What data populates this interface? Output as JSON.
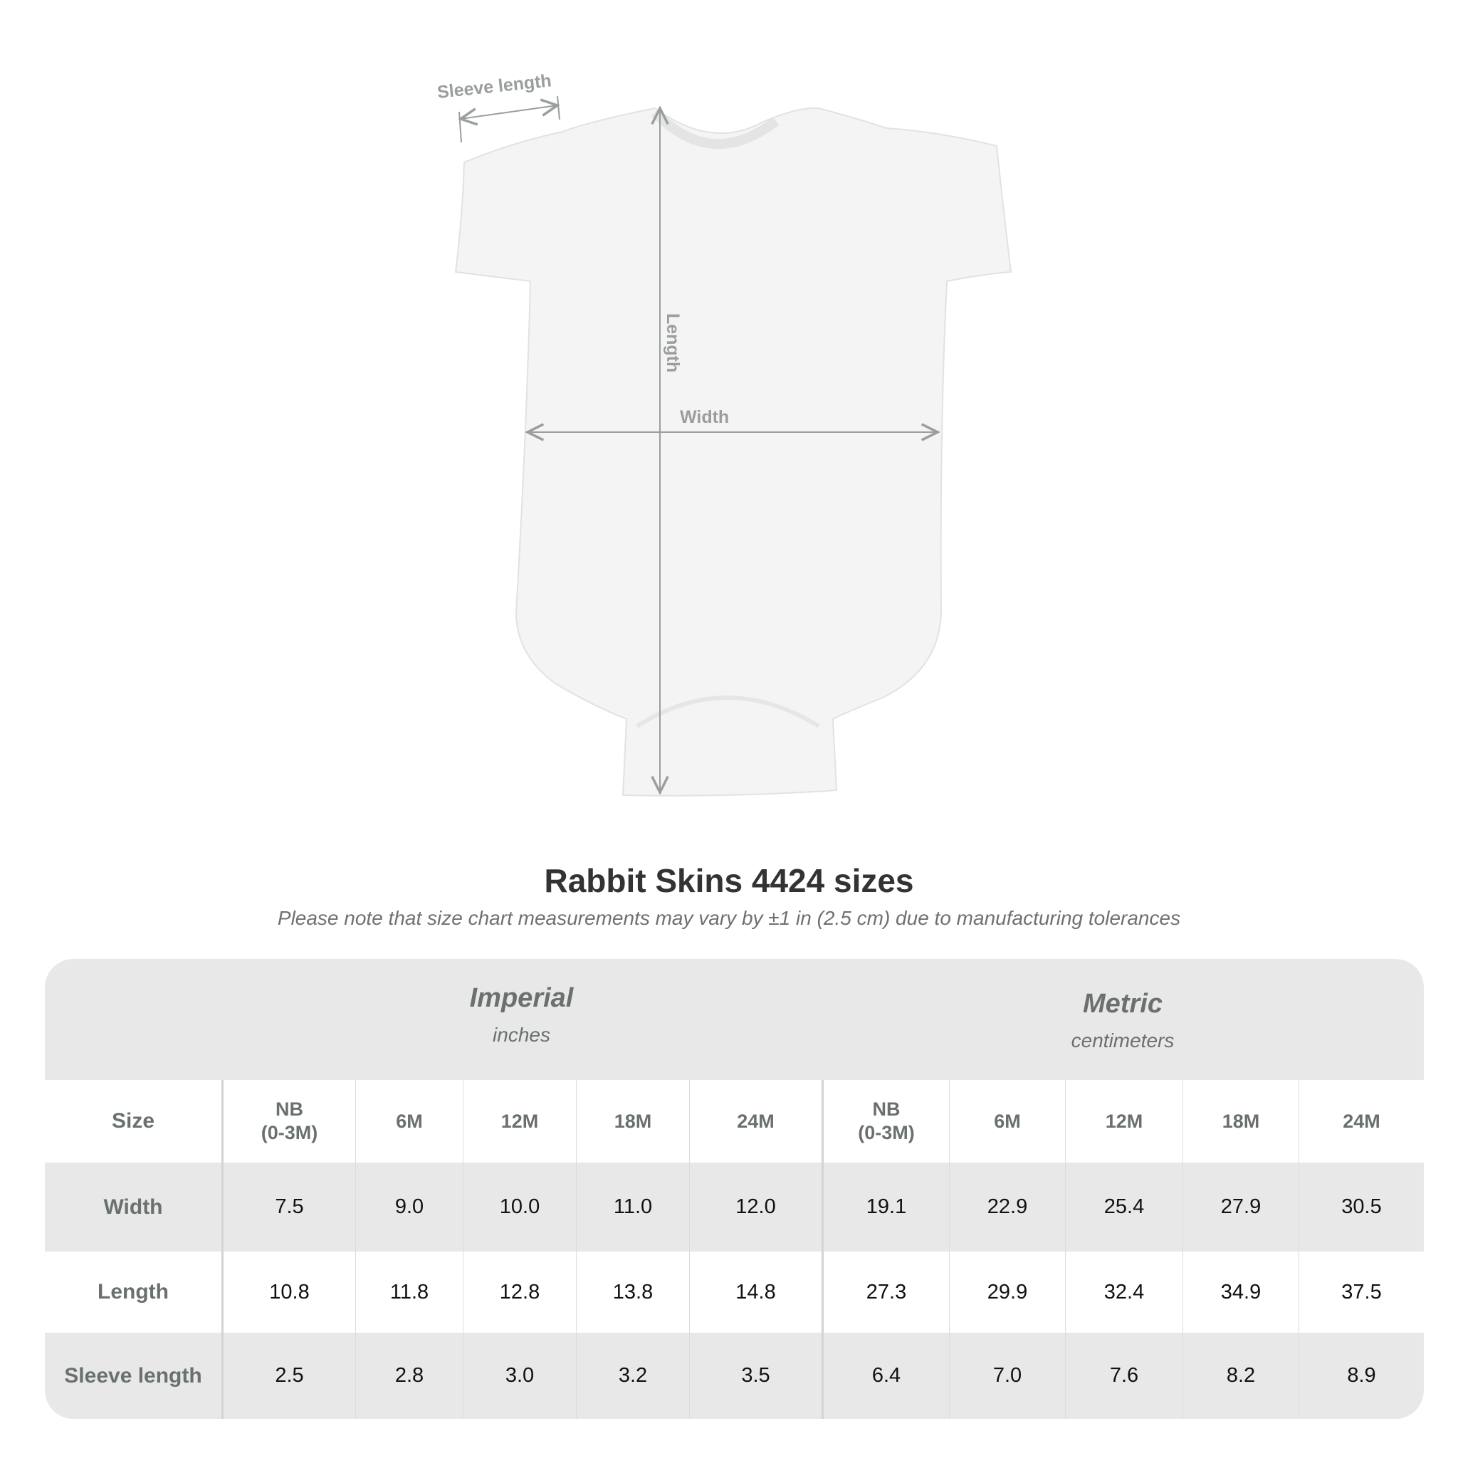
{
  "diagram": {
    "sleeve_label": "Sleeve length",
    "length_label": "Length",
    "width_label": "Width",
    "garment_color": "#f4f4f4",
    "arrow_color": "#9a9e9e"
  },
  "title": "Rabbit Skins 4424 sizes",
  "subtitle": "Please note that size chart measurements may vary by ±1 in (2.5 cm) due to manufacturing tolerances",
  "table": {
    "imperial": {
      "name": "Imperial",
      "unit": "inches"
    },
    "metric": {
      "name": "Metric",
      "unit": "centimeters"
    },
    "size_label": "Size",
    "sizes": [
      "NB\n(0-3M)",
      "6M",
      "12M",
      "18M",
      "24M",
      "NB\n(0-3M)",
      "6M",
      "12M",
      "18M",
      "24M"
    ],
    "rows": [
      {
        "label": "Width",
        "values": [
          "7.5",
          "9.0",
          "10.0",
          "11.0",
          "12.0",
          "19.1",
          "22.9",
          "25.4",
          "27.9",
          "30.5"
        ]
      },
      {
        "label": "Length",
        "values": [
          "10.8",
          "11.8",
          "12.8",
          "13.8",
          "14.8",
          "27.3",
          "29.9",
          "32.4",
          "34.9",
          "37.5"
        ]
      },
      {
        "label": "Sleeve length",
        "values": [
          "2.5",
          "2.8",
          "3.0",
          "3.2",
          "3.5",
          "6.4",
          "7.0",
          "7.6",
          "8.2",
          "8.9"
        ]
      }
    ]
  }
}
